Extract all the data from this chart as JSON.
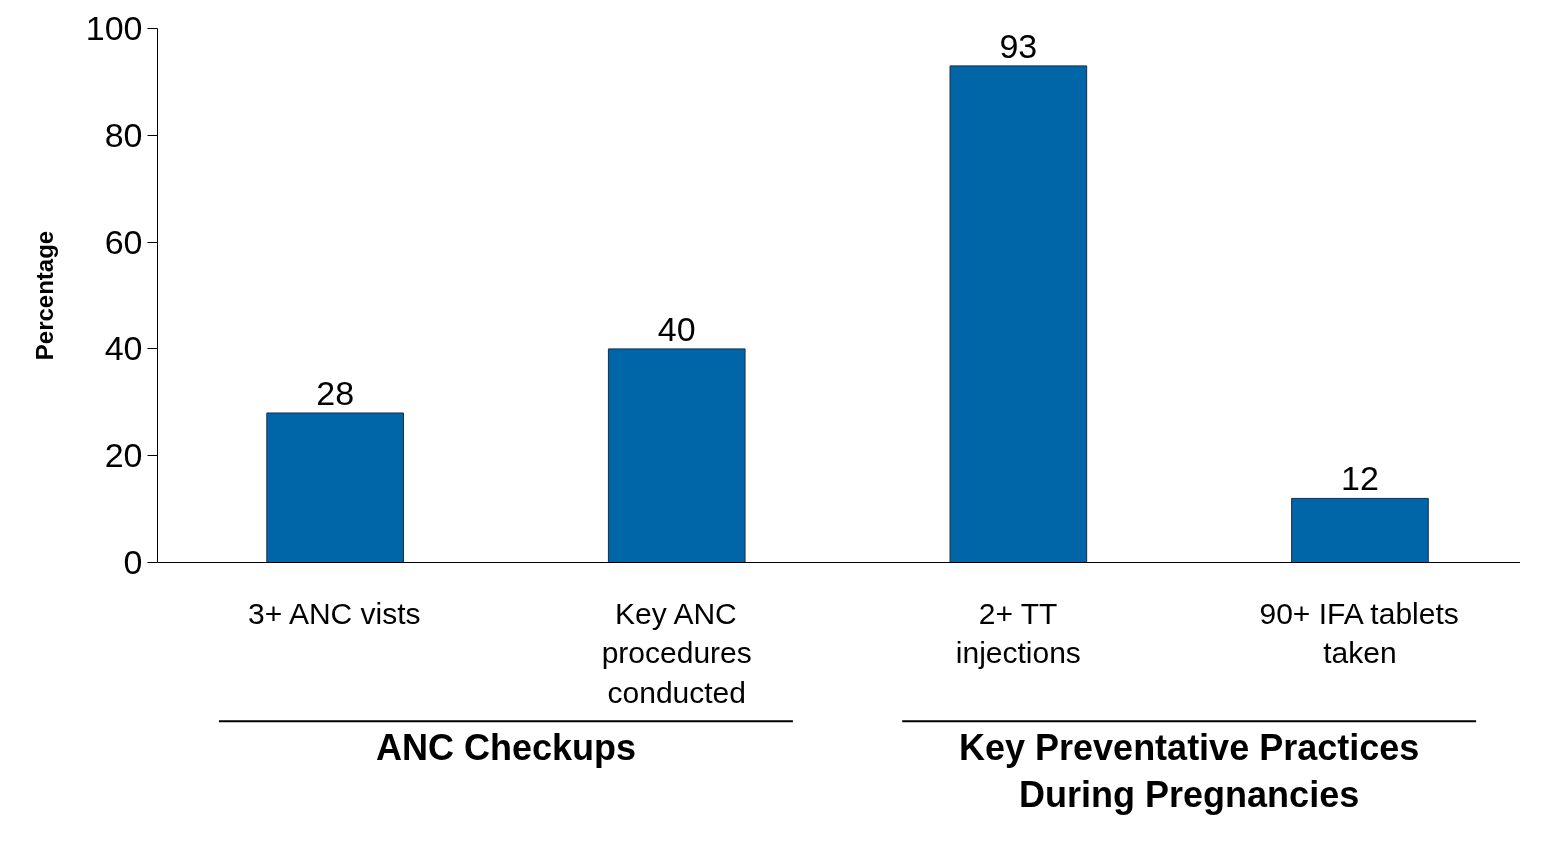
{
  "chart_data": {
    "type": "bar",
    "ylabel": "Percentage",
    "categories": [
      "3+ ANC vists",
      "Key ANC\nprocedures\nconducted",
      "2+ TT\ninjections",
      "90+ IFA tablets\ntaken"
    ],
    "values": [
      28,
      40,
      93,
      12
    ],
    "color": "#0066a8",
    "ylim": [
      0,
      100
    ],
    "yticks": [
      0,
      20,
      40,
      60,
      80,
      100
    ],
    "data_labels": true,
    "grid": false,
    "annotations": [
      "ANC Checkups",
      "Key Preventative Practices\nDuring Pregnancies"
    ]
  }
}
